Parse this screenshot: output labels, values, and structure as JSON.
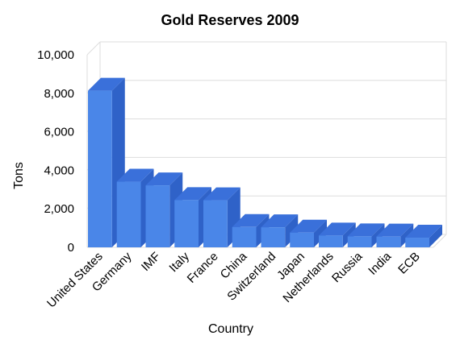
{
  "chart_data": {
    "type": "bar",
    "title": "Gold Reserves 2009",
    "xlabel": "Country",
    "ylabel": "Tons",
    "categories": [
      "United States",
      "Germany",
      "IMF",
      "Italy",
      "France",
      "China",
      "Switzerland",
      "Japan",
      "Netherlands",
      "Russia",
      "India",
      "ECB"
    ],
    "values": [
      8134,
      3408,
      3217,
      2452,
      2445,
      1054,
      1040,
      765,
      612,
      568,
      558,
      501
    ],
    "ylim": [
      0,
      10000
    ],
    "yticks": [
      "0",
      "2,000",
      "4,000",
      "6,000",
      "8,000",
      "10,000"
    ],
    "grid": true,
    "style": "3d",
    "colors": {
      "bar_front": "#4a86e8",
      "bar_side": "#2f62c8",
      "bar_top": "#3a70da",
      "grid": "#dddddd"
    }
  }
}
